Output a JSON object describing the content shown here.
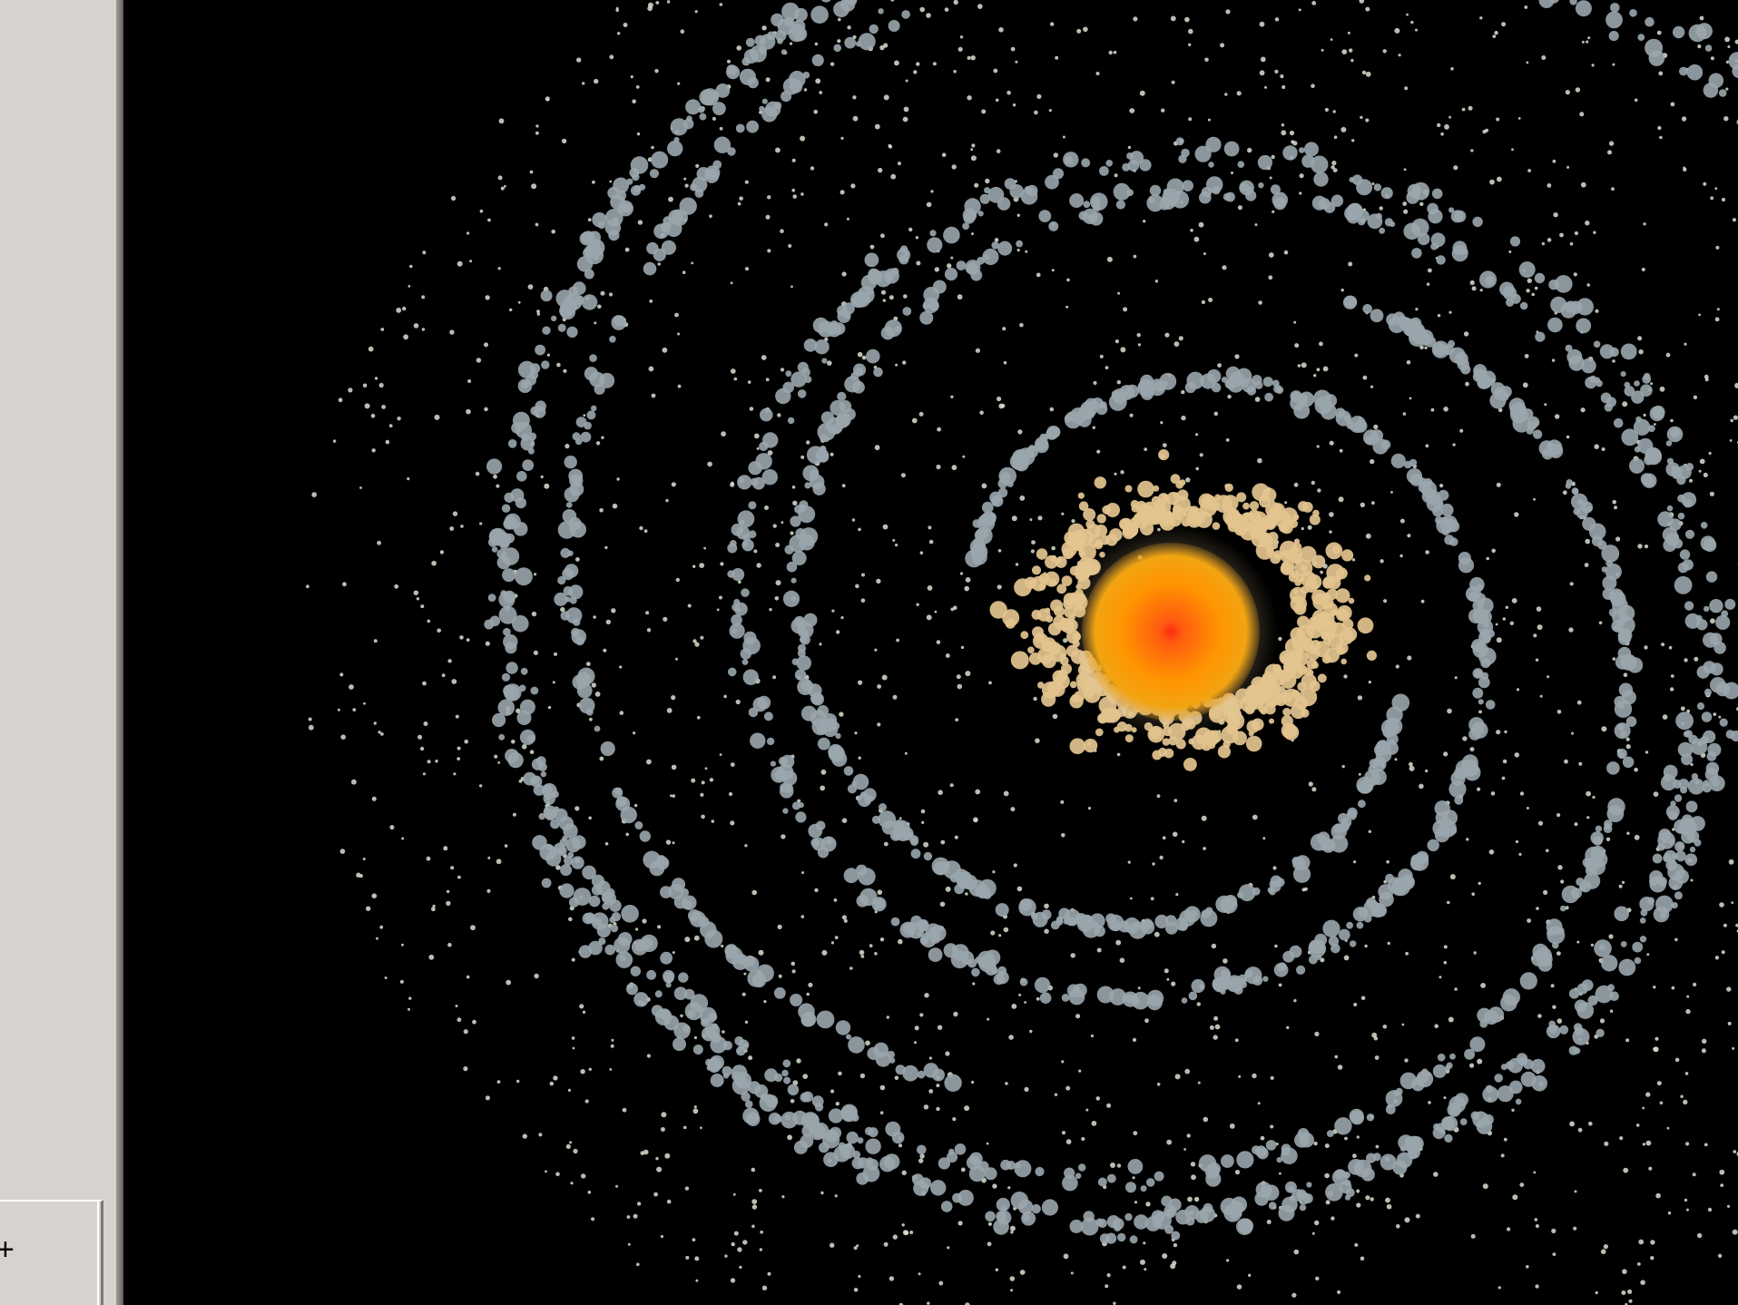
{
  "side_panel": {
    "button_label": "+"
  },
  "simulation": {
    "background_color": "#000000",
    "star": {
      "name": "central-star",
      "core_color": "#ff3b1a",
      "mid_color": "#ff9a00",
      "edge_color": "#f5b31a"
    },
    "particle_colors": {
      "inner_ring": "#e3c48f",
      "spiral_arms": "#9aa6ad",
      "field_stars": "#d8e0cf"
    }
  }
}
